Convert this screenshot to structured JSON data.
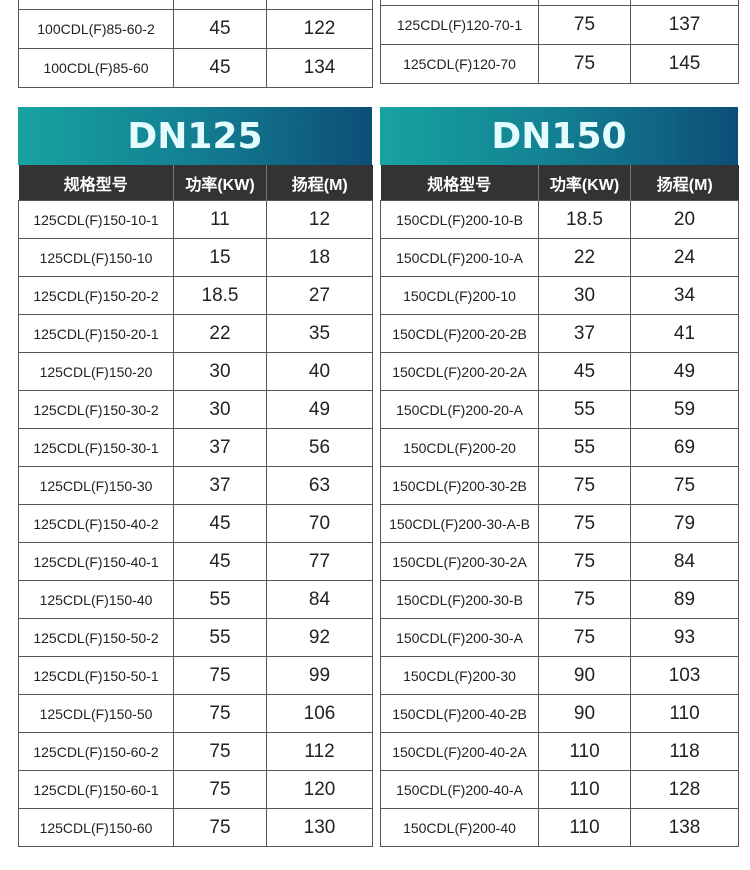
{
  "top_left": {
    "rows": [
      [
        "",
        "",
        " "
      ],
      [
        "100CDL(F)85-60-2",
        "45",
        "122"
      ],
      [
        "100CDL(F)85-60",
        "45",
        "134"
      ]
    ]
  },
  "top_right": {
    "rows": [
      [
        "",
        "",
        ""
      ],
      [
        "125CDL(F)120-70-1",
        "75",
        "137"
      ],
      [
        "125CDL(F)120-70",
        "75",
        "145"
      ]
    ]
  },
  "colors": {
    "banner_start": "#17a3a0",
    "banner_end": "#0d4e78",
    "header_bg": "#333333"
  },
  "tables": [
    {
      "title": "DN125",
      "headers": [
        "规格型号",
        "功率(KW)",
        "扬程(M)"
      ],
      "rows": [
        [
          "125CDL(F)150-10-1",
          "11",
          "12"
        ],
        [
          "125CDL(F)150-10",
          "15",
          "18"
        ],
        [
          "125CDL(F)150-20-2",
          "18.5",
          "27"
        ],
        [
          "125CDL(F)150-20-1",
          "22",
          "35"
        ],
        [
          "125CDL(F)150-20",
          "30",
          "40"
        ],
        [
          "125CDL(F)150-30-2",
          "30",
          "49"
        ],
        [
          "125CDL(F)150-30-1",
          "37",
          "56"
        ],
        [
          "125CDL(F)150-30",
          "37",
          "63"
        ],
        [
          "125CDL(F)150-40-2",
          "45",
          "70"
        ],
        [
          "125CDL(F)150-40-1",
          "45",
          "77"
        ],
        [
          "125CDL(F)150-40",
          "55",
          "84"
        ],
        [
          "125CDL(F)150-50-2",
          "55",
          "92"
        ],
        [
          "125CDL(F)150-50-1",
          "75",
          "99"
        ],
        [
          "125CDL(F)150-50",
          "75",
          "106"
        ],
        [
          "125CDL(F)150-60-2",
          "75",
          "112"
        ],
        [
          "125CDL(F)150-60-1",
          "75",
          "120"
        ],
        [
          "125CDL(F)150-60",
          "75",
          "130"
        ]
      ]
    },
    {
      "title": "DN150",
      "headers": [
        "规格型号",
        "功率(KW)",
        "扬程(M)"
      ],
      "rows": [
        [
          "150CDL(F)200-10-B",
          "18.5",
          "20"
        ],
        [
          "150CDL(F)200-10-A",
          "22",
          "24"
        ],
        [
          "150CDL(F)200-10",
          "30",
          "34"
        ],
        [
          "150CDL(F)200-20-2B",
          "37",
          "41"
        ],
        [
          "150CDL(F)200-20-2A",
          "45",
          "49"
        ],
        [
          "150CDL(F)200-20-A",
          "55",
          "59"
        ],
        [
          "150CDL(F)200-20",
          "55",
          "69"
        ],
        [
          "150CDL(F)200-30-2B",
          "75",
          "75"
        ],
        [
          "150CDL(F)200-30-A-B",
          "75",
          "79"
        ],
        [
          "150CDL(F)200-30-2A",
          "75",
          "84"
        ],
        [
          "150CDL(F)200-30-B",
          "75",
          "89"
        ],
        [
          "150CDL(F)200-30-A",
          "75",
          "93"
        ],
        [
          "150CDL(F)200-30",
          "90",
          "103"
        ],
        [
          "150CDL(F)200-40-2B",
          "90",
          "110"
        ],
        [
          "150CDL(F)200-40-2A",
          "110",
          "118"
        ],
        [
          "150CDL(F)200-40-A",
          "110",
          "128"
        ],
        [
          "150CDL(F)200-40",
          "110",
          "138"
        ]
      ]
    }
  ]
}
